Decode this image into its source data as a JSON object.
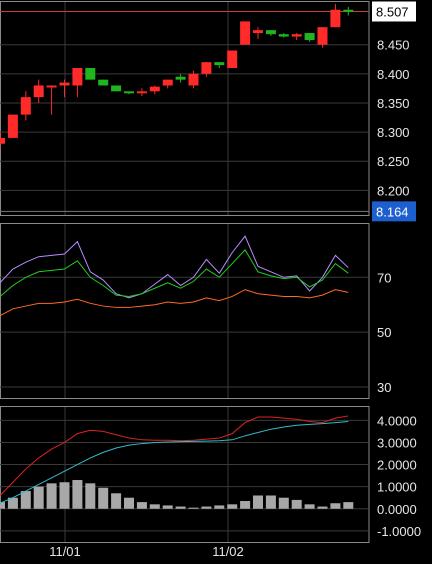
{
  "chart_data": [
    {
      "panel": "price",
      "type": "candlestick",
      "y_ticks": [
        "8.450",
        "8.400",
        "8.350",
        "8.300",
        "8.250",
        "8.200"
      ],
      "ylim": [
        8.156,
        8.525
      ],
      "last_price_label": "8.507",
      "last_price": 8.507,
      "marker_label": "8.164",
      "marker_value": 8.164,
      "up_color": "#ff2a2a",
      "down_color": "#1fb51f",
      "candles": [
        {
          "o": 8.28,
          "h": 8.3,
          "l": 8.27,
          "c": 8.29
        },
        {
          "o": 8.29,
          "h": 8.33,
          "l": 8.29,
          "c": 8.33
        },
        {
          "o": 8.33,
          "h": 8.37,
          "l": 8.32,
          "c": 8.36
        },
        {
          "o": 8.36,
          "h": 8.39,
          "l": 8.35,
          "c": 8.38
        },
        {
          "o": 8.38,
          "h": 8.38,
          "l": 8.33,
          "c": 8.38
        },
        {
          "o": 8.38,
          "h": 8.39,
          "l": 8.36,
          "c": 8.385
        },
        {
          "o": 8.38,
          "h": 8.41,
          "l": 8.36,
          "c": 8.41
        },
        {
          "o": 8.41,
          "h": 8.41,
          "l": 8.39,
          "c": 8.39
        },
        {
          "o": 8.39,
          "h": 8.39,
          "l": 8.38,
          "c": 8.38
        },
        {
          "o": 8.38,
          "h": 8.38,
          "l": 8.37,
          "c": 8.37
        },
        {
          "o": 8.37,
          "h": 8.37,
          "l": 8.365,
          "c": 8.368
        },
        {
          "o": 8.368,
          "h": 8.375,
          "l": 8.362,
          "c": 8.37
        },
        {
          "o": 8.37,
          "h": 8.38,
          "l": 8.365,
          "c": 8.378
        },
        {
          "o": 8.38,
          "h": 8.39,
          "l": 8.375,
          "c": 8.39
        },
        {
          "o": 8.395,
          "h": 8.4,
          "l": 8.385,
          "c": 8.39
        },
        {
          "o": 8.38,
          "h": 8.405,
          "l": 8.375,
          "c": 8.4
        },
        {
          "o": 8.4,
          "h": 8.42,
          "l": 8.395,
          "c": 8.42
        },
        {
          "o": 8.42,
          "h": 8.42,
          "l": 8.41,
          "c": 8.415
        },
        {
          "o": 8.41,
          "h": 8.44,
          "l": 8.41,
          "c": 8.44
        },
        {
          "o": 8.45,
          "h": 8.49,
          "l": 8.45,
          "c": 8.49
        },
        {
          "o": 8.47,
          "h": 8.48,
          "l": 8.46,
          "c": 8.475
        },
        {
          "o": 8.475,
          "h": 8.475,
          "l": 8.465,
          "c": 8.468
        },
        {
          "o": 8.468,
          "h": 8.47,
          "l": 8.462,
          "c": 8.464
        },
        {
          "o": 8.464,
          "h": 8.47,
          "l": 8.458,
          "c": 8.468
        },
        {
          "o": 8.47,
          "h": 8.47,
          "l": 8.455,
          "c": 8.458
        },
        {
          "o": 8.45,
          "h": 8.48,
          "l": 8.445,
          "c": 8.48
        },
        {
          "o": 8.48,
          "h": 8.52,
          "l": 8.48,
          "c": 8.51
        },
        {
          "o": 8.51,
          "h": 8.515,
          "l": 8.5,
          "c": 8.507
        }
      ]
    },
    {
      "panel": "oscillator",
      "type": "line",
      "y_ticks": [
        "70",
        "50",
        "30"
      ],
      "ylim": [
        25.6,
        89.8
      ],
      "series": [
        {
          "color": "#b58cff",
          "values": [
            68,
            73,
            75.5,
            77.5,
            78,
            78.5,
            83,
            72,
            69,
            64,
            62.5,
            64,
            67.5,
            71,
            67,
            70,
            76.5,
            71.5,
            79,
            85,
            74,
            72,
            70,
            70.5,
            65,
            70,
            78,
            73.5
          ]
        },
        {
          "color": "#22cc22",
          "values": [
            63,
            67,
            70,
            72,
            72.5,
            73,
            76,
            70,
            67,
            63.5,
            63,
            64,
            66,
            68,
            66,
            68.5,
            73,
            70,
            75,
            80,
            72,
            70.5,
            69.5,
            70,
            66.5,
            69,
            75,
            71.5
          ]
        },
        {
          "color": "#ff6a22",
          "values": [
            56,
            58.5,
            59.5,
            60.5,
            60.5,
            61,
            62,
            60.5,
            59.5,
            59,
            59,
            59.5,
            60,
            61,
            60.5,
            61,
            62.5,
            61.5,
            63,
            65.5,
            64,
            63.5,
            63,
            63,
            62.5,
            63.5,
            65.5,
            64.5
          ]
        }
      ]
    },
    {
      "panel": "macd",
      "type": "bar+line",
      "y_ticks": [
        "4.0000",
        "3.0000",
        "2.0000",
        "1.0000",
        "0.0000",
        "-1.0000"
      ],
      "ylim": [
        -1.55,
        4.65
      ],
      "xlabels": [
        "11/01",
        "11/02"
      ],
      "bar_color": "#a8a8a8",
      "bars": [
        0.3,
        0.5,
        0.8,
        1.0,
        1.15,
        1.2,
        1.3,
        1.15,
        0.95,
        0.7,
        0.5,
        0.3,
        0.2,
        0.15,
        0.1,
        0.05,
        0.1,
        0.15,
        0.2,
        0.35,
        0.6,
        0.6,
        0.5,
        0.4,
        0.2,
        0.1,
        0.25,
        0.3
      ],
      "series": [
        {
          "color": "#dd2222",
          "values": [
            0.6,
            1.2,
            1.8,
            2.3,
            2.7,
            3.0,
            3.4,
            3.55,
            3.5,
            3.35,
            3.2,
            3.12,
            3.1,
            3.1,
            3.08,
            3.1,
            3.15,
            3.2,
            3.4,
            3.9,
            4.15,
            4.15,
            4.1,
            4.05,
            3.95,
            3.9,
            4.1,
            4.2
          ]
        },
        {
          "color": "#33bbcc",
          "values": [
            0.25,
            0.5,
            0.8,
            1.1,
            1.4,
            1.7,
            2.0,
            2.3,
            2.55,
            2.75,
            2.88,
            2.95,
            3.0,
            3.02,
            3.04,
            3.05,
            3.06,
            3.08,
            3.12,
            3.3,
            3.45,
            3.6,
            3.7,
            3.78,
            3.82,
            3.85,
            3.9,
            3.95
          ]
        }
      ]
    }
  ]
}
